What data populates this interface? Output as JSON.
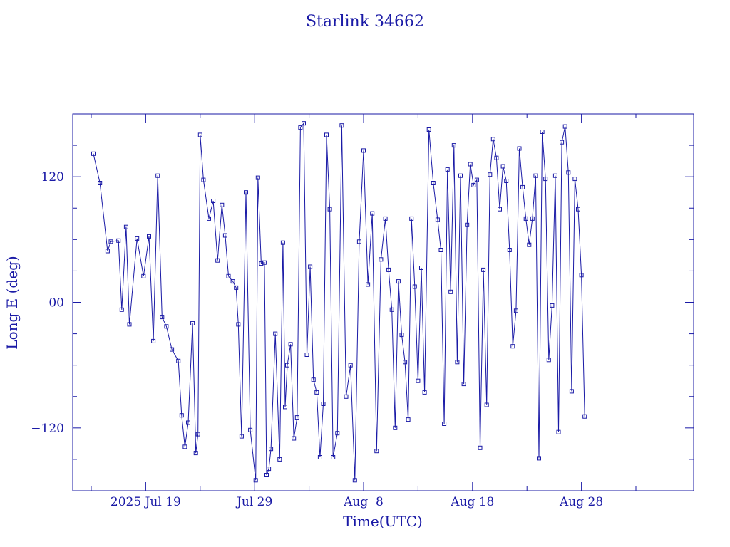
{
  "chart_data": {
    "type": "line",
    "title": "Starlink 34662",
    "xlabel": "Time(UTC)",
    "ylabel": "Long E (deg)",
    "x_tick_labels": [
      "2025 Jul 19",
      "Jul 29",
      "Aug  8",
      "Aug 18",
      "Aug 28"
    ],
    "y_tick_labels": [
      "−120",
      "00",
      "120"
    ],
    "y_ticks": [
      -120,
      0,
      120
    ],
    "x_tick_days": [
      19,
      29,
      39,
      49,
      59
    ],
    "xlim_days": [
      12.3,
      69.3
    ],
    "ylim": [
      -180,
      180
    ],
    "x_unit_note": "x values are days of July 2025 (Aug 8 = 39)",
    "color": "#1a1aa6",
    "series": [
      {
        "name": "",
        "x": [
          14.2,
          14.8,
          15.5,
          15.8,
          16.5,
          16.8,
          17.2,
          17.5,
          18.2,
          18.8,
          19.3,
          19.7,
          20.1,
          20.5,
          20.9,
          21.4,
          22.0,
          22.3,
          22.6,
          22.9,
          23.3,
          23.6,
          23.8,
          24.0,
          24.3,
          24.8,
          25.2,
          25.6,
          26.0,
          26.3,
          26.6,
          27.0,
          27.3,
          27.5,
          27.8,
          28.2,
          28.6,
          29.1,
          29.3,
          29.6,
          29.9,
          30.1,
          30.3,
          30.5,
          30.9,
          31.3,
          31.6,
          31.8,
          32.0,
          32.3,
          32.6,
          32.9,
          33.2,
          33.5,
          33.8,
          34.1,
          34.4,
          34.7,
          35.0,
          35.3,
          35.6,
          35.9,
          36.2,
          36.6,
          37.0,
          37.4,
          37.8,
          38.2,
          38.6,
          39.0,
          39.4,
          39.8,
          40.2,
          40.6,
          41.0,
          41.3,
          41.6,
          41.9,
          42.2,
          42.5,
          42.8,
          43.1,
          43.4,
          43.7,
          44.0,
          44.3,
          44.6,
          45.0,
          45.4,
          45.8,
          46.1,
          46.4,
          46.7,
          47.0,
          47.3,
          47.6,
          47.9,
          48.2,
          48.5,
          48.8,
          49.1,
          49.4,
          49.7,
          50.0,
          50.3,
          50.6,
          50.9,
          51.2,
          51.5,
          51.8,
          52.1,
          52.4,
          52.7,
          53.0,
          53.3,
          53.6,
          53.9,
          54.2,
          54.5,
          54.8,
          55.1,
          55.4,
          55.7,
          56.0,
          56.3,
          56.6,
          56.9,
          57.2,
          57.5,
          57.8,
          58.1,
          58.4,
          58.7,
          59.0,
          59.3
        ],
        "y": [
          142,
          114,
          49,
          58,
          59,
          -7,
          72,
          -21,
          61,
          25,
          63,
          -37,
          121,
          -14,
          -23,
          -45,
          -56,
          -108,
          -138,
          -115,
          -20,
          -144,
          -126,
          160,
          117,
          80,
          97,
          40,
          93,
          64,
          25,
          20,
          14,
          -21,
          -128,
          105,
          -122,
          -170,
          119,
          37,
          38,
          -165,
          -159,
          -140,
          -30,
          -150,
          57,
          -100,
          -60,
          -40,
          -130,
          -110,
          167,
          171,
          -50,
          34,
          -74,
          -86,
          -148,
          -97,
          160,
          89,
          -148,
          -125,
          169,
          -90,
          -60,
          -170,
          58,
          145,
          17,
          85,
          -142,
          41,
          80,
          31,
          -7,
          -120,
          20,
          -31,
          -57,
          -112,
          80,
          15,
          -75,
          33,
          -86,
          165,
          114,
          79,
          50,
          -116,
          127,
          10,
          150,
          -57,
          121,
          -78,
          74,
          132,
          112,
          117,
          -139,
          31,
          -98,
          122,
          156,
          138,
          89,
          130,
          116,
          50,
          -42,
          -8,
          147,
          110,
          80,
          55,
          80,
          121,
          -149,
          163,
          118,
          -55,
          -3,
          121,
          -124,
          153,
          168,
          124,
          -85,
          118,
          89,
          26,
          -109
        ]
      }
    ]
  }
}
